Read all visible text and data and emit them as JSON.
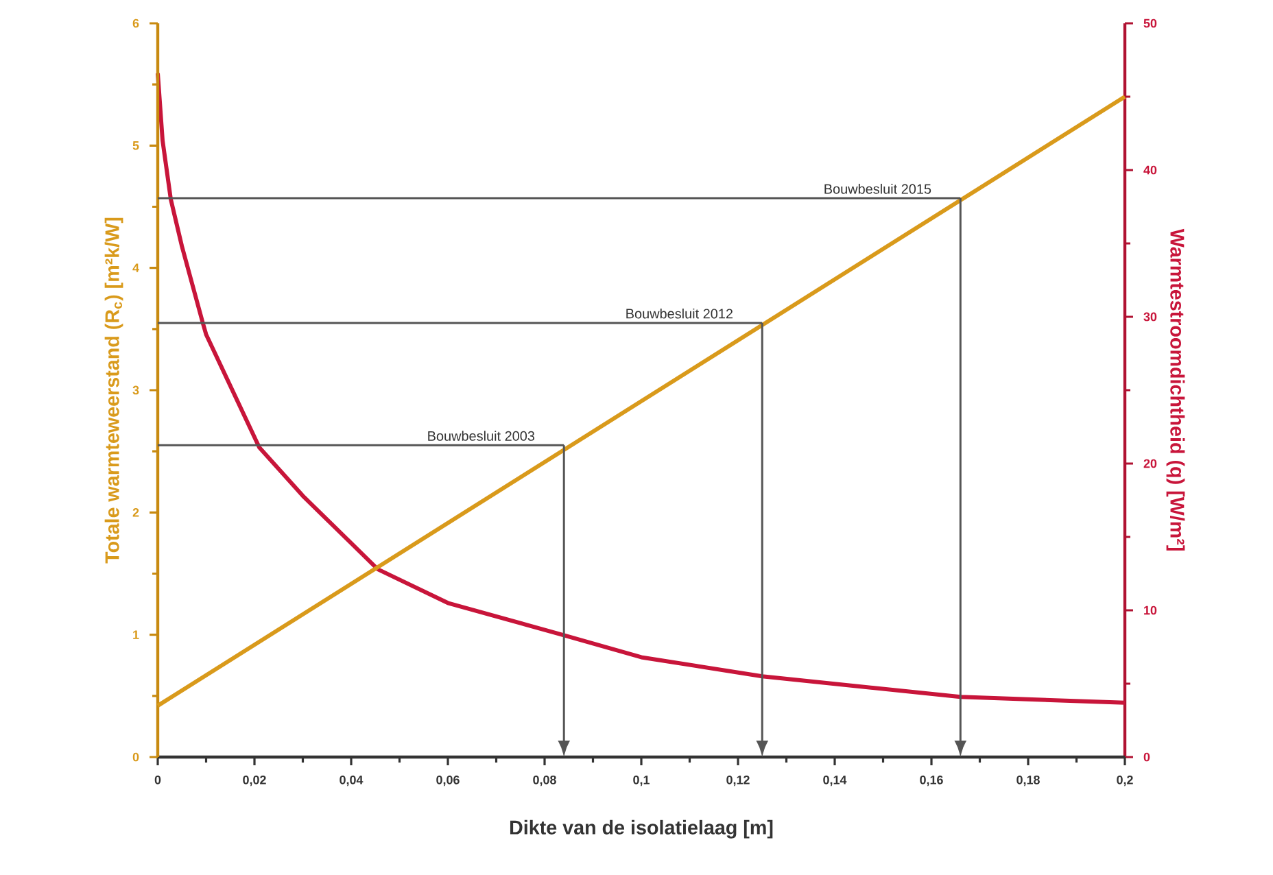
{
  "chart_data": {
    "type": "line",
    "xlabel": "Dikte van de isolatielaag [m]",
    "ylabel": "Totale warmteweerstand (R$_{c}$) [m²k/W]",
    "y2label": "Warmtestroomdichtheid (q) [W/m²]",
    "xlim": [
      0,
      0.2
    ],
    "xticks": [
      0,
      {
        "value": 0.02,
        "label": "0,02"
      },
      {
        "value": 0.04,
        "label": "0,04"
      },
      {
        "value": 0.06,
        "label": "0,06"
      },
      {
        "value": 0.08,
        "label": "0,08"
      },
      {
        "value": 0.1,
        "label": "0,1"
      },
      {
        "value": 0.12,
        "label": "0,12"
      },
      {
        "value": 0.14,
        "label": "0,14"
      },
      {
        "value": 0.16,
        "label": "0,16"
      },
      {
        "value": 0.18,
        "label": "0,18"
      },
      {
        "value": 0.2,
        "label": "0,2"
      }
    ],
    "ylim": [
      0,
      6
    ],
    "yticks": [
      0,
      1,
      2,
      3,
      4,
      5,
      6
    ],
    "y2lim": [
      0,
      50
    ],
    "y2ticks": [
      0,
      10,
      20,
      30,
      40,
      50
    ],
    "grid": false,
    "marker": "none",
    "line_style": "solid",
    "series": [
      {
        "color": "#d99a1b",
        "x": [
          0,
          0.2
        ],
        "values": [
          0.42,
          5.4
        ]
      },
      {
        "color": "#c8153a",
        "axis": "y2",
        "x": [
          0,
          0.001,
          0.0027,
          0.005,
          0.0093,
          0.01,
          0.021,
          0.03,
          0.0455,
          0.06,
          0.084,
          0.1,
          0.125,
          0.166,
          0.2
        ],
        "values": [
          46.6,
          42,
          38,
          34.8,
          29.6,
          28.8,
          21.1,
          17.8,
          12.8,
          10.5,
          8.3,
          6.8,
          5.5,
          4.1,
          3.7
        ]
      },
      {
        "color": "#555555",
        "x": [
          0,
          0.084
        ],
        "values": [
          2.55,
          2.55
        ]
      },
      {
        "color": "#555555",
        "x": [
          0,
          0.125
        ],
        "values": [
          3.55,
          3.55
        ]
      },
      {
        "color": "#555555",
        "x": [
          0,
          0.166
        ],
        "values": [
          4.57,
          4.57
        ]
      }
    ],
    "annotations": [
      {
        "text": "Bouwbesluit 2003",
        "x": 0.084,
        "y": 2.55
      },
      {
        "text": "Bouwbesluit 2012",
        "x": 0.125,
        "y": 3.55
      },
      {
        "text": "Bouwbesluit 2015",
        "x": 0.166,
        "y": 4.57
      }
    ]
  }
}
